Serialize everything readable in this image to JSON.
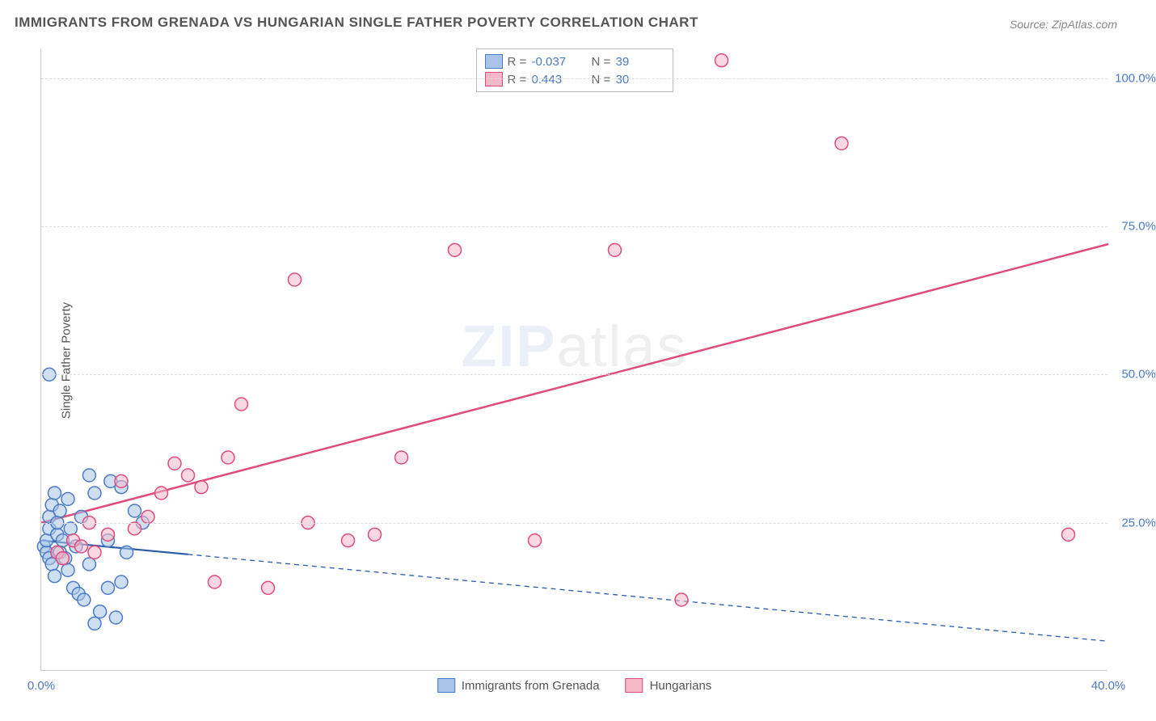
{
  "title": "IMMIGRANTS FROM GRENADA VS HUNGARIAN SINGLE FATHER POVERTY CORRELATION CHART",
  "source_label": "Source:",
  "source_name": "ZipAtlas.com",
  "watermark_zip": "ZIP",
  "watermark_atlas": "atlas",
  "ylabel": "Single Father Poverty",
  "chart": {
    "type": "scatter",
    "background_color": "#ffffff",
    "grid_color": "#dddddd",
    "axis_color": "#cccccc",
    "tick_color": "#4a7ac7",
    "text_color": "#555555",
    "xlim": [
      0,
      40
    ],
    "ylim": [
      0,
      105
    ],
    "xticks": [
      {
        "v": 0,
        "label": "0.0%"
      },
      {
        "v": 40,
        "label": "40.0%"
      }
    ],
    "yticks": [
      {
        "v": 25,
        "label": "25.0%"
      },
      {
        "v": 50,
        "label": "50.0%"
      },
      {
        "v": 75,
        "label": "75.0%"
      },
      {
        "v": 100,
        "label": "100.0%"
      }
    ],
    "marker_radius": 8,
    "marker_stroke_width": 1.5,
    "series": [
      {
        "name": "Immigrants from Grenada",
        "fill": "#a8c5e8",
        "fill_opacity": 0.55,
        "stroke": "#4a7ac7",
        "R": "-0.037",
        "N": "39",
        "trend": {
          "x1": 0,
          "y1": 22,
          "x2": 40,
          "y2": 5,
          "solid_until_x": 5.5,
          "color": "#2b5dab",
          "width": 2.2,
          "dash": "6 5"
        },
        "points": [
          [
            0.1,
            21
          ],
          [
            0.2,
            20
          ],
          [
            0.2,
            22
          ],
          [
            0.3,
            19
          ],
          [
            0.3,
            24
          ],
          [
            0.3,
            26
          ],
          [
            0.4,
            28
          ],
          [
            0.4,
            18
          ],
          [
            0.5,
            30
          ],
          [
            0.5,
            16
          ],
          [
            0.6,
            23
          ],
          [
            0.6,
            25
          ],
          [
            0.7,
            20
          ],
          [
            0.7,
            27
          ],
          [
            0.8,
            22
          ],
          [
            0.9,
            19
          ],
          [
            1.0,
            29
          ],
          [
            1.0,
            17
          ],
          [
            1.1,
            24
          ],
          [
            1.2,
            14
          ],
          [
            1.3,
            21
          ],
          [
            1.4,
            13
          ],
          [
            1.5,
            26
          ],
          [
            1.6,
            12
          ],
          [
            1.8,
            18
          ],
          [
            2.0,
            30
          ],
          [
            2.0,
            8
          ],
          [
            2.2,
            10
          ],
          [
            2.5,
            14
          ],
          [
            2.5,
            22
          ],
          [
            2.8,
            9
          ],
          [
            3.0,
            31
          ],
          [
            3.0,
            15
          ],
          [
            3.2,
            20
          ],
          [
            3.5,
            27
          ],
          [
            0.3,
            50
          ],
          [
            1.8,
            33
          ],
          [
            2.6,
            32
          ],
          [
            3.8,
            25
          ]
        ]
      },
      {
        "name": "Hungarians",
        "fill": "#f5b8c8",
        "fill_opacity": 0.55,
        "stroke": "#de4c7a",
        "R": "0.443",
        "N": "30",
        "trend": {
          "x1": 0,
          "y1": 25,
          "x2": 40,
          "y2": 72,
          "solid_until_x": 40,
          "color": "#de4c7a",
          "width": 2.5,
          "dash": ""
        },
        "points": [
          [
            0.6,
            20
          ],
          [
            0.8,
            19
          ],
          [
            1.2,
            22
          ],
          [
            1.5,
            21
          ],
          [
            1.8,
            25
          ],
          [
            2.0,
            20
          ],
          [
            2.5,
            23
          ],
          [
            3.0,
            32
          ],
          [
            3.5,
            24
          ],
          [
            4.0,
            26
          ],
          [
            4.5,
            30
          ],
          [
            5.0,
            35
          ],
          [
            5.5,
            33
          ],
          [
            6.0,
            31
          ],
          [
            6.5,
            15
          ],
          [
            7.0,
            36
          ],
          [
            7.5,
            45
          ],
          [
            8.5,
            14
          ],
          [
            9.5,
            66
          ],
          [
            10.0,
            25
          ],
          [
            11.5,
            22
          ],
          [
            12.5,
            23
          ],
          [
            13.5,
            36
          ],
          [
            15.5,
            71
          ],
          [
            18.5,
            22
          ],
          [
            21.5,
            71
          ],
          [
            24.0,
            12
          ],
          [
            25.5,
            103
          ],
          [
            30.0,
            89
          ],
          [
            38.5,
            23
          ]
        ]
      }
    ]
  },
  "legend_top": {
    "r_label": "R =",
    "n_label": "N ="
  }
}
